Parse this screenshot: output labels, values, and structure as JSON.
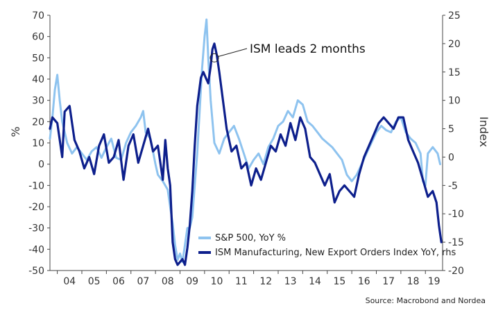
{
  "chart_data": {
    "type": "line",
    "ylabel_left": "%",
    "ylabel_right": "Index",
    "left_axis": {
      "min": -50,
      "max": 70,
      "ticks": [
        70,
        60,
        50,
        40,
        30,
        20,
        10,
        0,
        -10,
        -20,
        -30,
        -40,
        -50
      ]
    },
    "right_axis": {
      "min": -20,
      "max": 25,
      "ticks": [
        25,
        20,
        15,
        10,
        5,
        0,
        -5,
        -10,
        -15,
        -20
      ]
    },
    "x_range": [
      2003.7,
      2019.7
    ],
    "x_ticks": [
      {
        "label": "04",
        "value": 2004.0
      },
      {
        "label": "05",
        "value": 2005.0
      },
      {
        "label": "06",
        "value": 2006.0
      },
      {
        "label": "07",
        "value": 2007.0
      },
      {
        "label": "08",
        "value": 2008.0
      },
      {
        "label": "09",
        "value": 2009.0
      },
      {
        "label": "10",
        "value": 2010.0
      },
      {
        "label": "11",
        "value": 2011.0
      },
      {
        "label": "12",
        "value": 2012.0
      },
      {
        "label": "13",
        "value": 2013.0
      },
      {
        "label": "14",
        "value": 2014.0
      },
      {
        "label": "15",
        "value": 2015.0
      },
      {
        "label": "16",
        "value": 2016.0
      },
      {
        "label": "17",
        "value": 2017.0
      },
      {
        "label": "18",
        "value": 2018.0
      },
      {
        "label": "19",
        "value": 2019.0
      }
    ],
    "series": [
      {
        "name": "S&P 500, YoY %",
        "axis": "left",
        "color": "#8ec3ef",
        "points": [
          [
            2003.7,
            12
          ],
          [
            2003.8,
            22
          ],
          [
            2003.9,
            35
          ],
          [
            2004.0,
            42
          ],
          [
            2004.1,
            30
          ],
          [
            2004.2,
            20
          ],
          [
            2004.4,
            10
          ],
          [
            2004.6,
            5
          ],
          [
            2004.8,
            8
          ],
          [
            2005.0,
            5
          ],
          [
            2005.2,
            2
          ],
          [
            2005.4,
            6
          ],
          [
            2005.6,
            8
          ],
          [
            2005.8,
            3
          ],
          [
            2006.0,
            8
          ],
          [
            2006.2,
            12
          ],
          [
            2006.4,
            3
          ],
          [
            2006.6,
            2
          ],
          [
            2006.8,
            10
          ],
          [
            2007.0,
            15
          ],
          [
            2007.2,
            18
          ],
          [
            2007.4,
            22
          ],
          [
            2007.5,
            25
          ],
          [
            2007.6,
            15
          ],
          [
            2007.8,
            12
          ],
          [
            2008.0,
            0
          ],
          [
            2008.1,
            -5
          ],
          [
            2008.3,
            -8
          ],
          [
            2008.5,
            -12
          ],
          [
            2008.6,
            -20
          ],
          [
            2008.7,
            -28
          ],
          [
            2008.8,
            -38
          ],
          [
            2008.9,
            -45
          ],
          [
            2009.0,
            -42
          ],
          [
            2009.1,
            -46
          ],
          [
            2009.2,
            -38
          ],
          [
            2009.3,
            -30
          ],
          [
            2009.4,
            -30
          ],
          [
            2009.5,
            -25
          ],
          [
            2009.6,
            -10
          ],
          [
            2009.7,
            5
          ],
          [
            2009.8,
            25
          ],
          [
            2009.9,
            45
          ],
          [
            2010.0,
            60
          ],
          [
            2010.08,
            68
          ],
          [
            2010.15,
            50
          ],
          [
            2010.25,
            30
          ],
          [
            2010.4,
            10
          ],
          [
            2010.6,
            5
          ],
          [
            2010.8,
            12
          ],
          [
            2011.0,
            15
          ],
          [
            2011.2,
            18
          ],
          [
            2011.4,
            12
          ],
          [
            2011.6,
            5
          ],
          [
            2011.8,
            -2
          ],
          [
            2012.0,
            2
          ],
          [
            2012.2,
            5
          ],
          [
            2012.4,
            0
          ],
          [
            2012.6,
            8
          ],
          [
            2012.8,
            12
          ],
          [
            2013.0,
            18
          ],
          [
            2013.2,
            20
          ],
          [
            2013.4,
            25
          ],
          [
            2013.6,
            22
          ],
          [
            2013.8,
            30
          ],
          [
            2014.0,
            28
          ],
          [
            2014.2,
            20
          ],
          [
            2014.4,
            18
          ],
          [
            2014.6,
            15
          ],
          [
            2014.8,
            12
          ],
          [
            2015.0,
            10
          ],
          [
            2015.2,
            8
          ],
          [
            2015.4,
            5
          ],
          [
            2015.6,
            2
          ],
          [
            2015.8,
            -5
          ],
          [
            2016.0,
            -8
          ],
          [
            2016.2,
            -5
          ],
          [
            2016.4,
            0
          ],
          [
            2016.6,
            5
          ],
          [
            2016.8,
            10
          ],
          [
            2017.0,
            15
          ],
          [
            2017.2,
            18
          ],
          [
            2017.4,
            16
          ],
          [
            2017.6,
            15
          ],
          [
            2017.8,
            20
          ],
          [
            2018.0,
            22
          ],
          [
            2018.2,
            15
          ],
          [
            2018.4,
            12
          ],
          [
            2018.6,
            10
          ],
          [
            2018.8,
            5
          ],
          [
            2018.9,
            -8
          ],
          [
            2019.0,
            -10
          ],
          [
            2019.1,
            5
          ],
          [
            2019.3,
            8
          ],
          [
            2019.5,
            5
          ],
          [
            2019.6,
            0
          ]
        ]
      },
      {
        "name": "ISM Manufacturing, New Export Orders Index YoY, rhs",
        "axis": "right",
        "color": "#0d1f8c",
        "points": [
          [
            2003.7,
            5
          ],
          [
            2003.8,
            7
          ],
          [
            2004.0,
            6
          ],
          [
            2004.2,
            0
          ],
          [
            2004.3,
            8
          ],
          [
            2004.5,
            9
          ],
          [
            2004.7,
            3
          ],
          [
            2004.9,
            1
          ],
          [
            2005.1,
            -2
          ],
          [
            2005.3,
            0
          ],
          [
            2005.5,
            -3
          ],
          [
            2005.7,
            2
          ],
          [
            2005.9,
            4
          ],
          [
            2006.1,
            -1
          ],
          [
            2006.3,
            0
          ],
          [
            2006.5,
            3
          ],
          [
            2006.7,
            -4
          ],
          [
            2006.9,
            2
          ],
          [
            2007.1,
            4
          ],
          [
            2007.3,
            -1
          ],
          [
            2007.5,
            2
          ],
          [
            2007.7,
            5
          ],
          [
            2007.9,
            1
          ],
          [
            2008.1,
            2
          ],
          [
            2008.3,
            -4
          ],
          [
            2008.4,
            3
          ],
          [
            2008.5,
            -2
          ],
          [
            2008.6,
            -5
          ],
          [
            2008.7,
            -15
          ],
          [
            2008.8,
            -18
          ],
          [
            2008.9,
            -19
          ],
          [
            2009.1,
            -18
          ],
          [
            2009.2,
            -19
          ],
          [
            2009.3,
            -16
          ],
          [
            2009.4,
            -12
          ],
          [
            2009.5,
            -6
          ],
          [
            2009.6,
            2
          ],
          [
            2009.7,
            9
          ],
          [
            2009.85,
            14
          ],
          [
            2009.95,
            15
          ],
          [
            2010.05,
            14
          ],
          [
            2010.15,
            13
          ],
          [
            2010.25,
            16
          ],
          [
            2010.32,
            19
          ],
          [
            2010.4,
            20
          ],
          [
            2010.5,
            18
          ],
          [
            2010.6,
            15
          ],
          [
            2010.75,
            10
          ],
          [
            2010.9,
            5
          ],
          [
            2011.1,
            1
          ],
          [
            2011.3,
            2
          ],
          [
            2011.5,
            -2
          ],
          [
            2011.7,
            -1
          ],
          [
            2011.9,
            -5
          ],
          [
            2012.1,
            -2
          ],
          [
            2012.3,
            -4
          ],
          [
            2012.5,
            -1
          ],
          [
            2012.7,
            2
          ],
          [
            2012.9,
            1
          ],
          [
            2013.1,
            4
          ],
          [
            2013.3,
            2
          ],
          [
            2013.5,
            6
          ],
          [
            2013.7,
            3
          ],
          [
            2013.9,
            7
          ],
          [
            2014.1,
            5
          ],
          [
            2014.3,
            0
          ],
          [
            2014.5,
            -1
          ],
          [
            2014.7,
            -3
          ],
          [
            2014.9,
            -5
          ],
          [
            2015.1,
            -3
          ],
          [
            2015.3,
            -8
          ],
          [
            2015.5,
            -6
          ],
          [
            2015.7,
            -5
          ],
          [
            2015.9,
            -6
          ],
          [
            2016.1,
            -7
          ],
          [
            2016.3,
            -3
          ],
          [
            2016.5,
            0
          ],
          [
            2016.7,
            2
          ],
          [
            2016.9,
            4
          ],
          [
            2017.1,
            6
          ],
          [
            2017.3,
            7
          ],
          [
            2017.5,
            6
          ],
          [
            2017.7,
            5
          ],
          [
            2017.9,
            7
          ],
          [
            2018.1,
            7
          ],
          [
            2018.3,
            3
          ],
          [
            2018.5,
            1
          ],
          [
            2018.7,
            -1
          ],
          [
            2018.9,
            -4
          ],
          [
            2019.1,
            -7
          ],
          [
            2019.3,
            -6
          ],
          [
            2019.45,
            -8
          ],
          [
            2019.55,
            -12
          ],
          [
            2019.65,
            -15
          ]
        ]
      }
    ],
    "annotation": {
      "text": "ISM leads 2 months",
      "x": 2010.4,
      "y_left": 50
    },
    "source": "Source: Macrobond and Nordea"
  }
}
